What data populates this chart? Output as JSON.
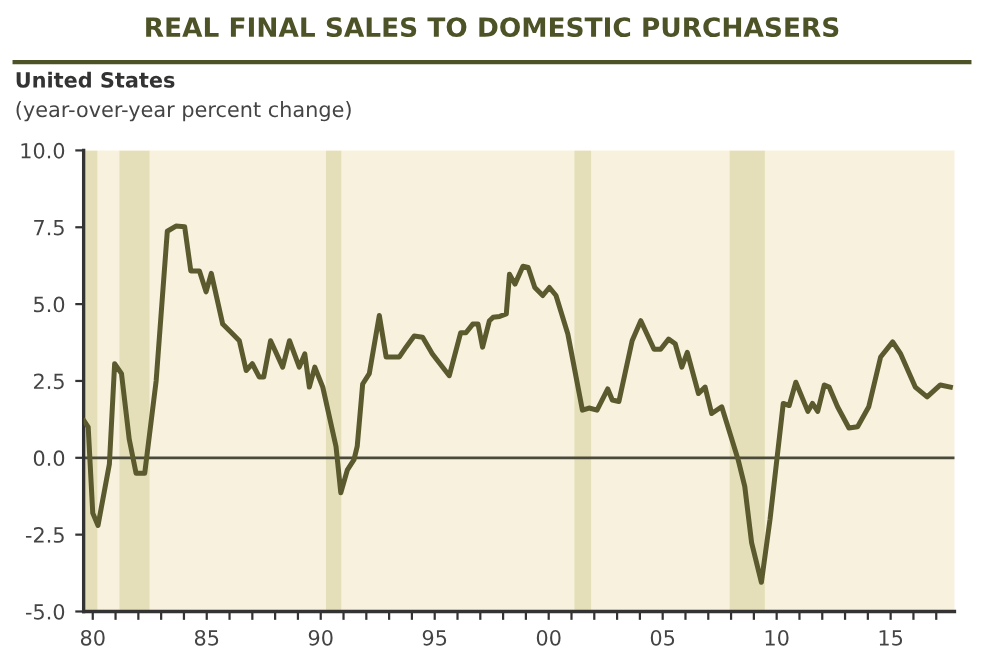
{
  "chart_data": {
    "type": "line",
    "title": "REAL FINAL SALES TO DOMESTIC PURCHASERS",
    "subtitle": "United States",
    "ylabel": "(year-over-year percent change)",
    "x": [
      1979.62,
      1979.8,
      1980.0,
      1980.23,
      1980.73,
      1980.96,
      1981.26,
      1981.6,
      1981.9,
      1982.28,
      1982.78,
      1983.27,
      1983.65,
      1984.03,
      1984.3,
      1984.68,
      1984.97,
      1985.2,
      1985.7,
      1986.14,
      1986.43,
      1986.73,
      1987.0,
      1987.3,
      1987.5,
      1987.8,
      1988.33,
      1988.63,
      1989.06,
      1989.3,
      1989.5,
      1989.74,
      1990.09,
      1990.67,
      1990.88,
      1991.17,
      1991.46,
      1991.6,
      1991.84,
      1992.13,
      1992.57,
      1992.87,
      1993.45,
      1993.74,
      1994.1,
      1994.47,
      1994.9,
      1995.64,
      1996.14,
      1996.37,
      1996.67,
      1996.9,
      1997.1,
      1997.4,
      1997.56,
      1997.85,
      1998.14,
      1998.28,
      1998.52,
      1998.87,
      1999.1,
      1999.39,
      1999.74,
      2000.03,
      2000.32,
      2000.84,
      2001.48,
      2001.77,
      2002.12,
      2002.59,
      2002.79,
      2003.08,
      2003.66,
      2004.04,
      2004.62,
      2004.91,
      2005.26,
      2005.55,
      2005.84,
      2006.08,
      2006.57,
      2006.86,
      2007.15,
      2007.59,
      2008.31,
      2008.6,
      2008.9,
      2009.33,
      2009.71,
      2010.29,
      2010.55,
      2010.84,
      2011.37,
      2011.57,
      2011.8,
      2012.09,
      2012.3,
      2012.67,
      2013.17,
      2013.55,
      2014.04,
      2014.56,
      2015.09,
      2015.44,
      2016.08,
      2016.6,
      2017.18,
      2017.62
    ],
    "series": [
      {
        "color": "#5a5a2e",
        "values": [
          1.2,
          1.0,
          -1.8,
          -2.2,
          -0.2,
          3.06,
          2.74,
          0.6,
          -0.5,
          -0.5,
          2.5,
          7.37,
          7.54,
          7.52,
          6.08,
          6.08,
          5.4,
          6.0,
          4.35,
          4.03,
          3.81,
          2.84,
          3.06,
          2.63,
          2.63,
          3.81,
          2.95,
          3.81,
          2.95,
          3.38,
          2.3,
          2.95,
          2.3,
          0.37,
          -1.14,
          -0.39,
          -0.06,
          0.37,
          2.4,
          2.74,
          4.63,
          3.28,
          3.28,
          3.6,
          3.96,
          3.92,
          3.38,
          2.67,
          4.07,
          4.07,
          4.35,
          4.35,
          3.6,
          4.46,
          4.57,
          4.6,
          4.68,
          5.97,
          5.65,
          6.23,
          6.19,
          5.54,
          5.28,
          5.54,
          5.28,
          4.03,
          1.55,
          1.62,
          1.55,
          2.24,
          1.88,
          1.83,
          3.81,
          4.46,
          3.53,
          3.53,
          3.86,
          3.71,
          2.95,
          3.43,
          2.09,
          2.3,
          1.44,
          1.66,
          -0.06,
          -0.93,
          -2.76,
          -4.05,
          -2.0,
          1.77,
          1.7,
          2.46,
          1.51,
          1.77,
          1.51,
          2.37,
          2.3,
          1.66,
          0.97,
          1.01,
          1.66,
          3.28,
          3.77,
          3.38,
          2.3,
          1.98,
          2.37,
          2.3
        ]
      }
    ],
    "xlim": [
      1979.6,
      2017.8
    ],
    "xticks": [
      {
        "value": 1980,
        "label": "80"
      },
      {
        "value": 1981,
        "label": null
      },
      {
        "value": 1982,
        "label": null
      },
      {
        "value": 1983,
        "label": null
      },
      {
        "value": 1984,
        "label": null
      },
      {
        "value": 1985,
        "label": "85"
      },
      {
        "value": 1986,
        "label": null
      },
      {
        "value": 1987,
        "label": null
      },
      {
        "value": 1988,
        "label": null
      },
      {
        "value": 1989,
        "label": null
      },
      {
        "value": 1990,
        "label": "90"
      },
      {
        "value": 1991,
        "label": null
      },
      {
        "value": 1992,
        "label": null
      },
      {
        "value": 1993,
        "label": null
      },
      {
        "value": 1994,
        "label": null
      },
      {
        "value": 1995,
        "label": "95"
      },
      {
        "value": 1996,
        "label": null
      },
      {
        "value": 1997,
        "label": null
      },
      {
        "value": 1998,
        "label": null
      },
      {
        "value": 1999,
        "label": null
      },
      {
        "value": 2000,
        "label": "00"
      },
      {
        "value": 2001,
        "label": null
      },
      {
        "value": 2002,
        "label": null
      },
      {
        "value": 2003,
        "label": null
      },
      {
        "value": 2004,
        "label": null
      },
      {
        "value": 2005,
        "label": "05"
      },
      {
        "value": 2006,
        "label": null
      },
      {
        "value": 2007,
        "label": null
      },
      {
        "value": 2008,
        "label": null
      },
      {
        "value": 2009,
        "label": null
      },
      {
        "value": 2010,
        "label": "10"
      },
      {
        "value": 2011,
        "label": null
      },
      {
        "value": 2012,
        "label": null
      },
      {
        "value": 2013,
        "label": null
      },
      {
        "value": 2014,
        "label": null
      },
      {
        "value": 2015,
        "label": "15"
      },
      {
        "value": 2016,
        "label": null
      },
      {
        "value": 2017,
        "label": null
      }
    ],
    "ylim": [
      -5,
      10
    ],
    "yticks": [
      {
        "value": -5,
        "label": "-5.0"
      },
      {
        "value": -2.5,
        "label": "-2.5"
      },
      {
        "value": 0,
        "label": "0.0"
      },
      {
        "value": 2.5,
        "label": "2.5"
      },
      {
        "value": 5,
        "label": "5.0"
      },
      {
        "value": 7.5,
        "label": "7.5"
      },
      {
        "value": 10,
        "label": "10.0"
      }
    ],
    "ref_lines": [
      {
        "axis": "y",
        "value": 0,
        "color": "#4a4a3a",
        "line_style": "solid"
      }
    ],
    "bands": [
      {
        "axis": "x",
        "from": 1979.62,
        "to": 1980.2,
        "color": "#e4dfb8"
      },
      {
        "axis": "x",
        "from": 1981.17,
        "to": 1982.49,
        "color": "#e4dfb8"
      },
      {
        "axis": "x",
        "from": 1990.23,
        "to": 1990.9,
        "color": "#e4dfb8"
      },
      {
        "axis": "x",
        "from": 2001.13,
        "to": 2001.86,
        "color": "#e4dfb8"
      },
      {
        "axis": "x",
        "from": 2007.94,
        "to": 2009.48,
        "color": "#e4dfb8"
      }
    ],
    "grid": false,
    "legend": false,
    "marker": "none",
    "line_style": "solid"
  }
}
